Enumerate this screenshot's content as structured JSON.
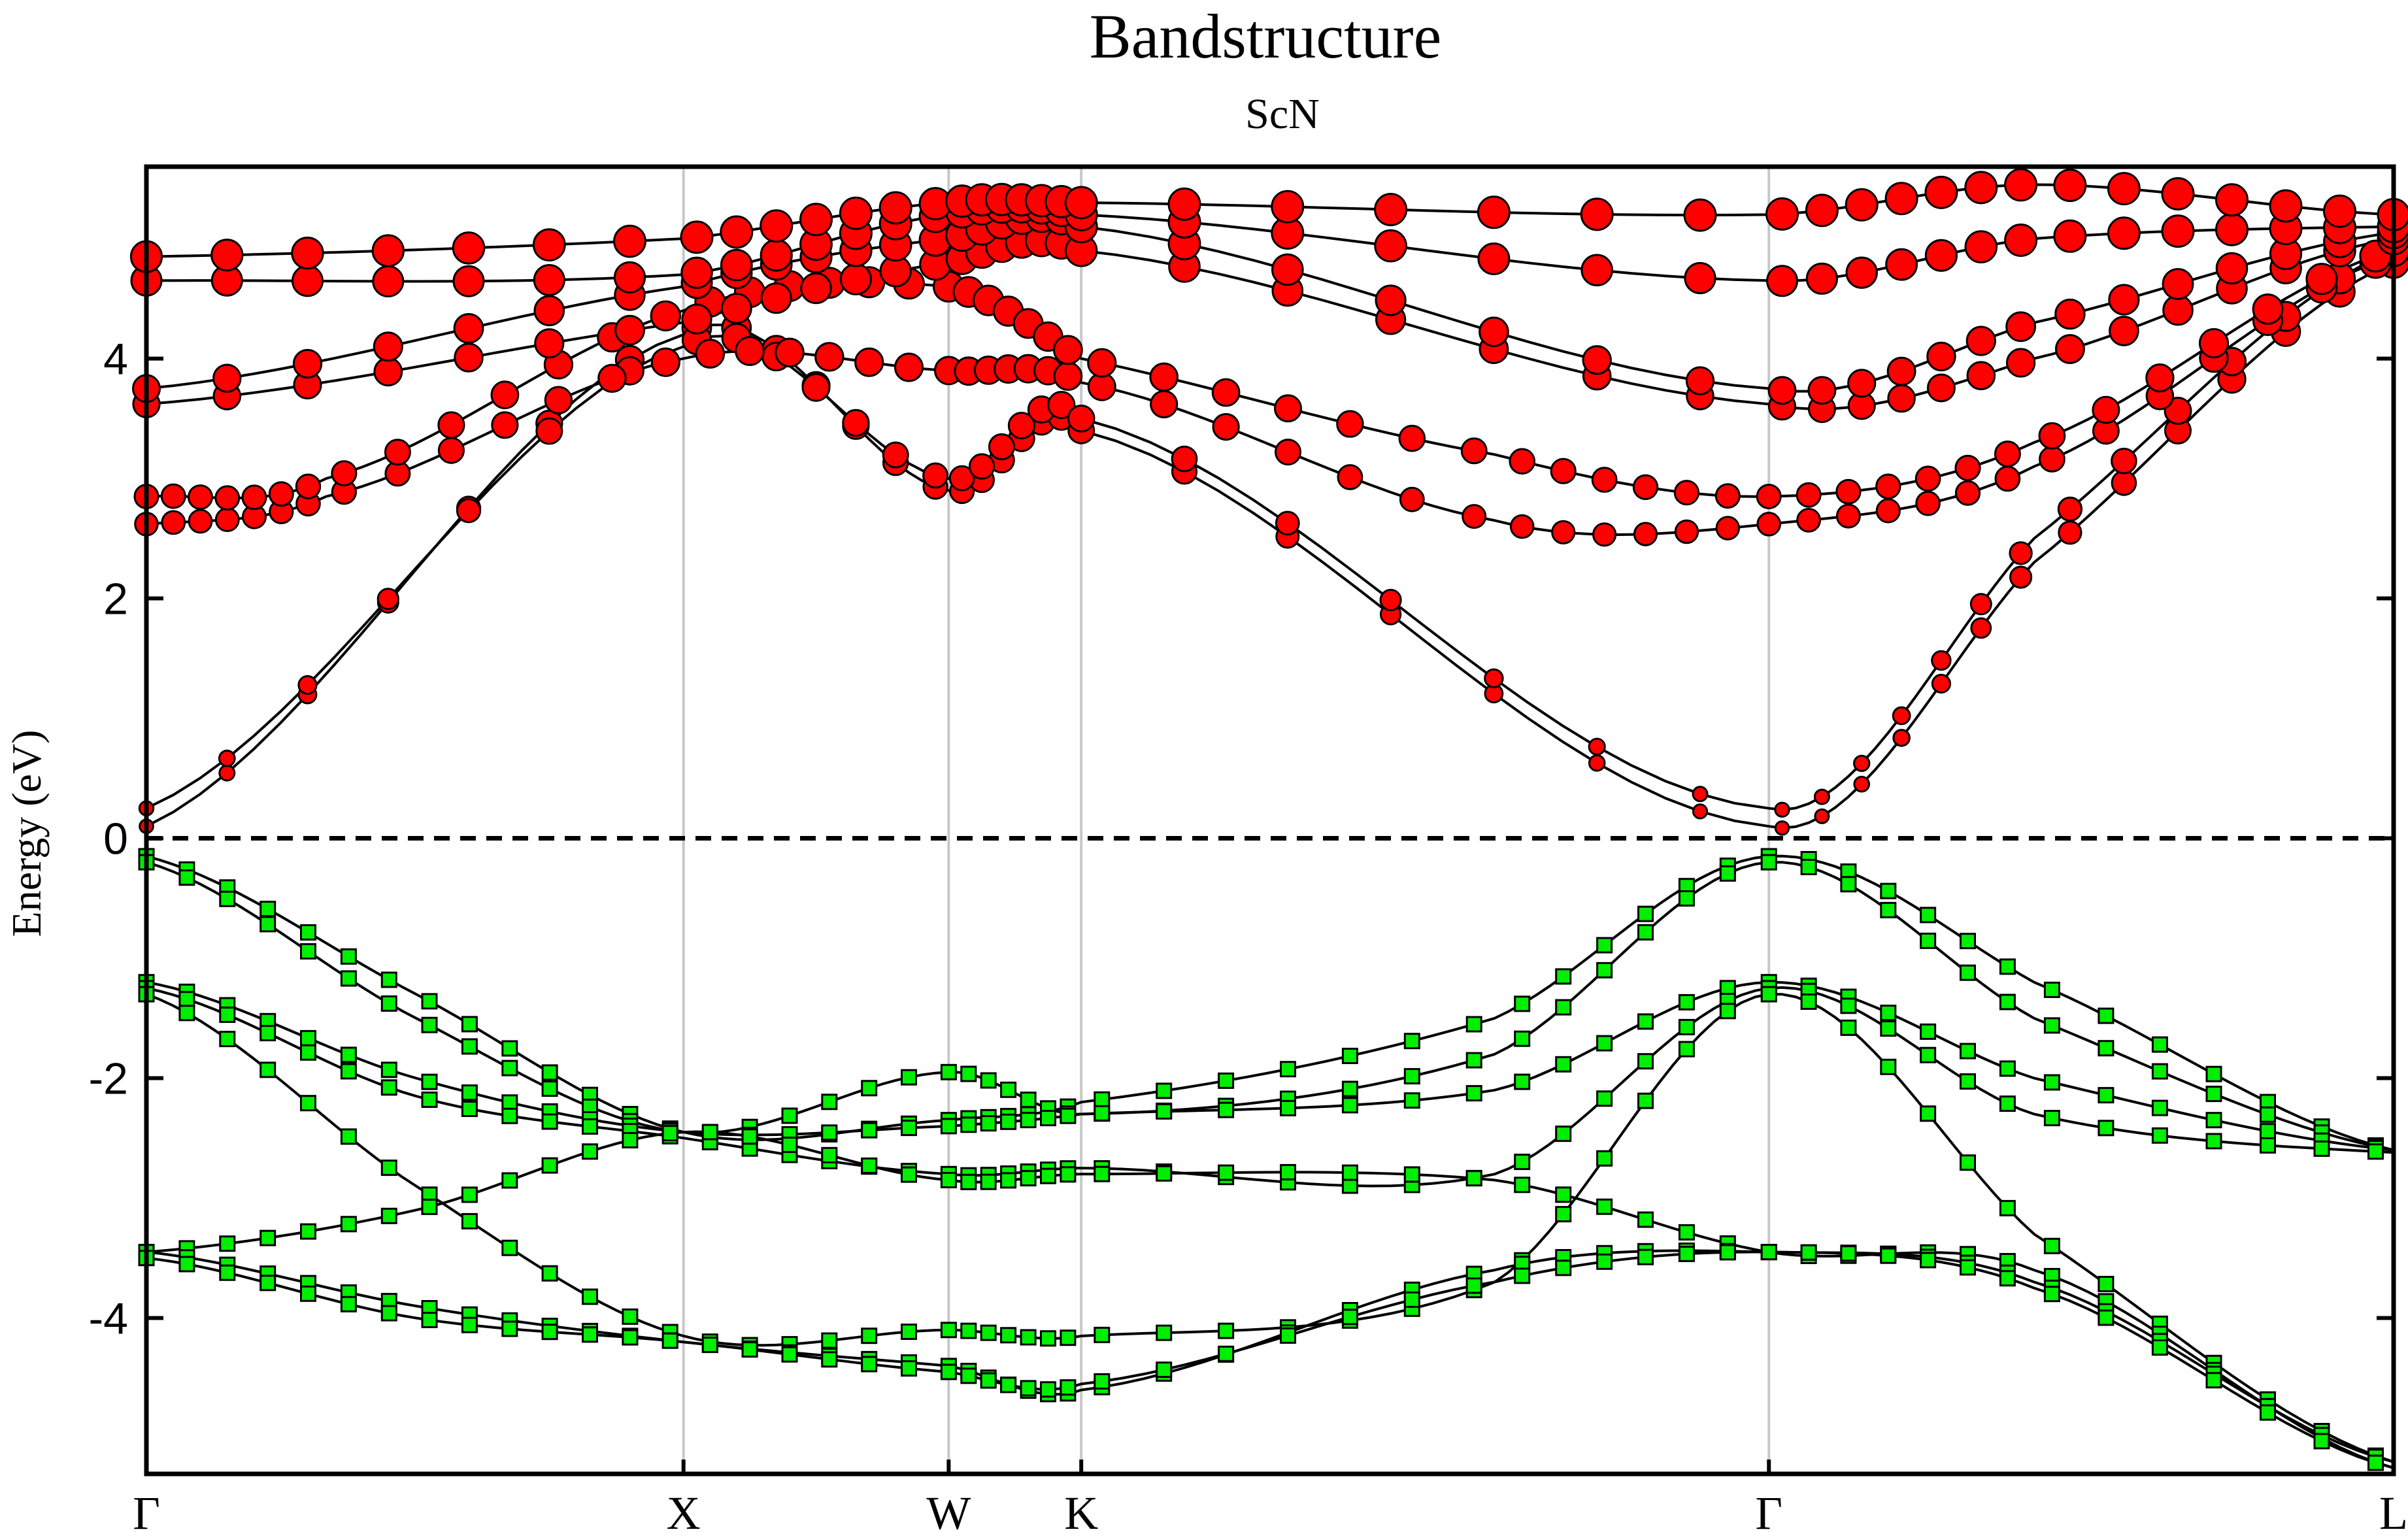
{
  "chart_data": {
    "type": "line",
    "title": "Bandstructure",
    "subtitle": "ScN",
    "ylabel": "Energy (eV)",
    "xlabel": "",
    "ylim": [
      -5.3,
      5.6
    ],
    "xlim": [
      0,
      1
    ],
    "y_ticks": [
      {
        "value": 4,
        "label": "4"
      },
      {
        "value": 2,
        "label": "2"
      },
      {
        "value": 0,
        "label": "0"
      },
      {
        "value": -2,
        "label": "-2"
      },
      {
        "value": -4,
        "label": "-4"
      }
    ],
    "k_points": [
      {
        "label": "Γ",
        "x": 0.0
      },
      {
        "label": "X",
        "x": 0.239
      },
      {
        "label": "W",
        "x": 0.357
      },
      {
        "label": "K",
        "x": 0.416
      },
      {
        "label": "Γ",
        "x": 0.722
      },
      {
        "label": "L",
        "x": 1.0
      }
    ],
    "fermi_level": 0,
    "grid": false,
    "series": [
      {
        "role": "conduction",
        "color": "#ff0000",
        "marker": "circle",
        "x": [
          0.0,
          0.239,
          0.357,
          0.416,
          0.722,
          0.84,
          1.0
        ],
        "y": [
          0.1,
          4.2,
          2.9,
          3.4,
          0.1,
          2.3,
          4.8
        ]
      },
      {
        "role": "conduction",
        "color": "#ff0000",
        "marker": "circle",
        "x": [
          0.0,
          0.239,
          0.357,
          0.416,
          0.722,
          0.84,
          1.0
        ],
        "y": [
          0.25,
          4.1,
          3.0,
          3.5,
          0.25,
          2.5,
          4.9
        ]
      },
      {
        "role": "conduction",
        "color": "#ff0000",
        "marker": "circle",
        "x": [
          0.0,
          0.08,
          0.239,
          0.357,
          0.416,
          0.6,
          0.722,
          0.84,
          1.0
        ],
        "y": [
          2.62,
          2.85,
          4.0,
          3.9,
          3.8,
          2.65,
          2.62,
          3.1,
          4.85
        ]
      },
      {
        "role": "conduction",
        "color": "#ff0000",
        "marker": "circle",
        "x": [
          0.0,
          0.08,
          0.239,
          0.357,
          0.416,
          0.6,
          0.722,
          0.84,
          1.0
        ],
        "y": [
          2.85,
          3.0,
          4.4,
          4.6,
          4.0,
          3.2,
          2.85,
          3.3,
          4.9
        ]
      },
      {
        "role": "conduction",
        "color": "#ff0000",
        "marker": "circle",
        "x": [
          0.0,
          0.239,
          0.357,
          0.416,
          0.722,
          0.84,
          1.0
        ],
        "y": [
          3.62,
          4.3,
          4.8,
          4.9,
          3.62,
          4.0,
          5.0
        ]
      },
      {
        "role": "conduction",
        "color": "#ff0000",
        "marker": "circle",
        "x": [
          0.0,
          0.239,
          0.357,
          0.416,
          0.722,
          0.84,
          1.0
        ],
        "y": [
          3.75,
          4.6,
          5.0,
          5.1,
          3.75,
          4.3,
          5.05
        ]
      },
      {
        "role": "conduction",
        "color": "#ff0000",
        "marker": "circle",
        "x": [
          0.0,
          0.239,
          0.357,
          0.416,
          0.722,
          0.84,
          1.0
        ],
        "y": [
          4.65,
          4.7,
          5.2,
          5.2,
          4.65,
          5.0,
          5.1
        ]
      },
      {
        "role": "conduction",
        "color": "#ff0000",
        "marker": "circle",
        "x": [
          0.0,
          0.239,
          0.357,
          0.416,
          0.722,
          0.84,
          1.0
        ],
        "y": [
          4.85,
          5.0,
          5.3,
          5.3,
          5.2,
          5.45,
          5.2
        ]
      },
      {
        "role": "valence",
        "color": "#00ee00",
        "marker": "square",
        "x": [
          0.0,
          0.12,
          0.239,
          0.357,
          0.416,
          0.6,
          0.722,
          0.84,
          1.0
        ],
        "y": [
          -0.15,
          -1.3,
          -2.45,
          -2.35,
          -2.2,
          -1.5,
          -0.15,
          -1.2,
          -2.6
        ]
      },
      {
        "role": "valence",
        "color": "#00ee00",
        "marker": "square",
        "x": [
          0.0,
          0.12,
          0.239,
          0.357,
          0.416,
          0.6,
          0.722,
          0.84,
          1.0
        ],
        "y": [
          -0.2,
          -1.5,
          -2.45,
          -1.95,
          -2.3,
          -1.8,
          -0.2,
          -1.5,
          -2.6
        ]
      },
      {
        "role": "valence",
        "color": "#00ee00",
        "marker": "square",
        "x": [
          0.0,
          0.12,
          0.239,
          0.357,
          0.416,
          0.6,
          0.722,
          0.84,
          1.0
        ],
        "y": [
          -1.2,
          -2.0,
          -2.45,
          -2.4,
          -2.3,
          -2.1,
          -1.2,
          -2.0,
          -2.6
        ]
      },
      {
        "role": "valence",
        "color": "#00ee00",
        "marker": "square",
        "x": [
          0.0,
          0.12,
          0.239,
          0.357,
          0.416,
          0.6,
          0.722,
          0.84,
          1.0
        ],
        "y": [
          -1.25,
          -2.15,
          -2.5,
          -2.8,
          -2.75,
          -2.8,
          -1.25,
          -2.3,
          -2.62
        ]
      },
      {
        "role": "valence",
        "color": "#00ee00",
        "marker": "square",
        "x": [
          0.0,
          0.12,
          0.239,
          0.357,
          0.416,
          0.6,
          0.722,
          0.84,
          1.0
        ],
        "y": [
          -1.3,
          -2.9,
          -4.15,
          -4.1,
          -4.15,
          -3.7,
          -1.3,
          -3.3,
          -5.2
        ]
      },
      {
        "role": "valence",
        "color": "#00ee00",
        "marker": "square",
        "x": [
          0.0,
          0.12,
          0.239,
          0.357,
          0.416,
          0.6,
          0.722,
          0.84,
          1.0
        ],
        "y": [
          -3.45,
          -3.1,
          -2.45,
          -2.85,
          -2.8,
          -2.85,
          -3.45,
          -3.6,
          -5.25
        ]
      },
      {
        "role": "valence",
        "color": "#00ee00",
        "marker": "square",
        "x": [
          0.0,
          0.12,
          0.239,
          0.357,
          0.416,
          0.6,
          0.722,
          0.84,
          1.0
        ],
        "y": [
          -3.45,
          -3.9,
          -4.2,
          -4.4,
          -4.6,
          -3.6,
          -3.45,
          -3.7,
          -5.2
        ]
      },
      {
        "role": "valence",
        "color": "#00ee00",
        "marker": "square",
        "x": [
          0.0,
          0.12,
          0.239,
          0.357,
          0.416,
          0.6,
          0.722,
          0.84,
          1.0
        ],
        "y": [
          -3.5,
          -4.0,
          -4.2,
          -4.45,
          -4.55,
          -3.7,
          -3.45,
          -3.75,
          -5.25
        ]
      }
    ]
  },
  "colors": {
    "conduction_fill": "#ff0000",
    "valence_fill": "#00ee00",
    "band_line": "#000000",
    "kpoint_line": "#c8c8c8"
  }
}
